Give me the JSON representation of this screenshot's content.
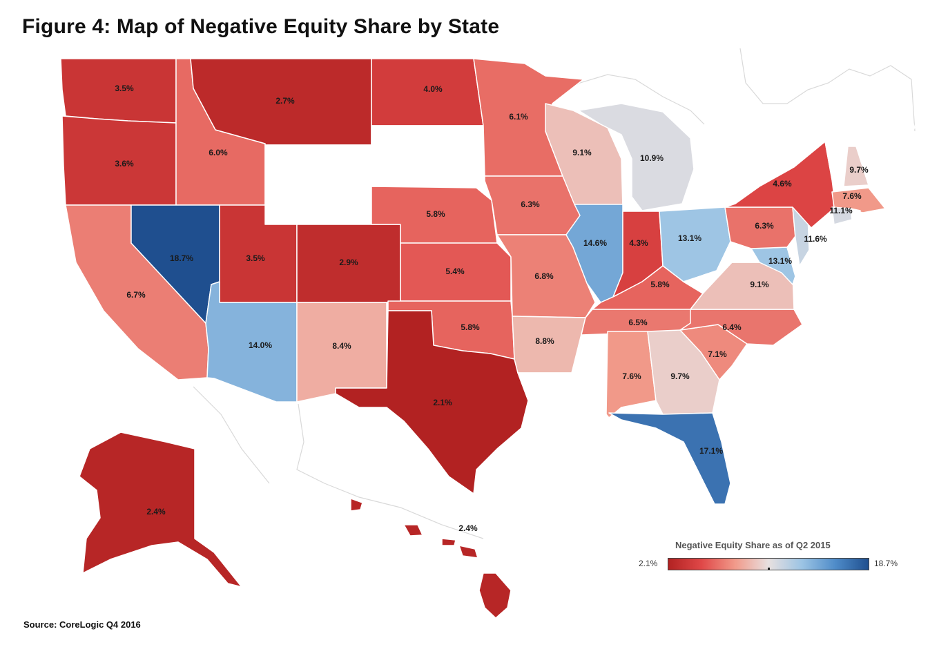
{
  "title": "Figure 4: Map of Negative Equity Share by State",
  "source": "Source: CoreLogic Q4 2016",
  "legend": {
    "title": "Negative Equity Share as of Q2 2015",
    "min_label": "2.1%",
    "max_label": "18.7%",
    "min_value": 2.1,
    "max_value": 18.7,
    "colors": [
      "#b22222",
      "#e04848",
      "#f19a8a",
      "#e8e0e0",
      "#9cc4e4",
      "#4f8cc9",
      "#1f4f8f"
    ]
  },
  "no_data_color": "#ffffff",
  "states": [
    {
      "id": "WA",
      "label": "3.5%",
      "value": 3.5
    },
    {
      "id": "OR",
      "label": "3.6%",
      "value": 3.6
    },
    {
      "id": "CA",
      "label": "6.7%",
      "value": 6.7
    },
    {
      "id": "ID",
      "label": "6.0%",
      "value": 6.0
    },
    {
      "id": "NV",
      "label": "18.7%",
      "value": 18.7
    },
    {
      "id": "MT",
      "label": "2.7%",
      "value": 2.7
    },
    {
      "id": "UT",
      "label": "3.5%",
      "value": 3.5
    },
    {
      "id": "AZ",
      "label": "14.0%",
      "value": 14.0
    },
    {
      "id": "CO",
      "label": "2.9%",
      "value": 2.9
    },
    {
      "id": "NM",
      "label": "8.4%",
      "value": 8.4
    },
    {
      "id": "ND",
      "label": "4.0%",
      "value": 4.0
    },
    {
      "id": "NE",
      "label": "5.8%",
      "value": 5.8
    },
    {
      "id": "KS",
      "label": "5.4%",
      "value": 5.4
    },
    {
      "id": "OK",
      "label": "5.8%",
      "value": 5.8
    },
    {
      "id": "TX",
      "label": "2.1%",
      "value": 2.1
    },
    {
      "id": "MN",
      "label": "6.1%",
      "value": 6.1
    },
    {
      "id": "IA",
      "label": "6.3%",
      "value": 6.3
    },
    {
      "id": "MO",
      "label": "6.8%",
      "value": 6.8
    },
    {
      "id": "AR",
      "label": "8.8%",
      "value": 8.8
    },
    {
      "id": "WI",
      "label": "9.1%",
      "value": 9.1
    },
    {
      "id": "IL",
      "label": "14.6%",
      "value": 14.6
    },
    {
      "id": "MI",
      "label": "10.9%",
      "value": 10.9
    },
    {
      "id": "IN",
      "label": "4.3%",
      "value": 4.3
    },
    {
      "id": "OH",
      "label": "13.1%",
      "value": 13.1
    },
    {
      "id": "KY",
      "label": "5.8%",
      "value": 5.8
    },
    {
      "id": "TN",
      "label": "6.5%",
      "value": 6.5
    },
    {
      "id": "AL",
      "label": "7.6%",
      "value": 7.6
    },
    {
      "id": "GA",
      "label": "9.7%",
      "value": 9.7
    },
    {
      "id": "FL",
      "label": "17.1%",
      "value": 17.1
    },
    {
      "id": "SC",
      "label": "7.1%",
      "value": 7.1
    },
    {
      "id": "NC",
      "label": "6.4%",
      "value": 6.4
    },
    {
      "id": "VA",
      "label": "9.1%",
      "value": 9.1
    },
    {
      "id": "MD",
      "label": "13.1%",
      "value": 13.1
    },
    {
      "id": "PA",
      "label": "6.3%",
      "value": 6.3
    },
    {
      "id": "NY",
      "label": "4.6%",
      "value": 4.6
    },
    {
      "id": "NJ",
      "label": "11.6%",
      "value": 11.6
    },
    {
      "id": "CT",
      "label": "11.1%",
      "value": 11.1
    },
    {
      "id": "MA",
      "label": "7.6%",
      "value": 7.6
    },
    {
      "id": "NH",
      "label": "9.7%",
      "value": 9.7
    },
    {
      "id": "AK",
      "label": "2.4%",
      "value": 2.4
    },
    {
      "id": "HI",
      "label": "2.4%",
      "value": 2.4
    },
    {
      "id": "WY",
      "label": "",
      "value": null
    },
    {
      "id": "SD",
      "label": "",
      "value": null
    },
    {
      "id": "WV",
      "label": "",
      "value": null
    },
    {
      "id": "MS",
      "label": "",
      "value": null
    },
    {
      "id": "LA",
      "label": "",
      "value": null
    },
    {
      "id": "VT",
      "label": "",
      "value": null
    },
    {
      "id": "ME",
      "label": "",
      "value": null
    },
    {
      "id": "DE",
      "label": "",
      "value": null
    },
    {
      "id": "RI",
      "label": "",
      "value": null
    }
  ]
}
